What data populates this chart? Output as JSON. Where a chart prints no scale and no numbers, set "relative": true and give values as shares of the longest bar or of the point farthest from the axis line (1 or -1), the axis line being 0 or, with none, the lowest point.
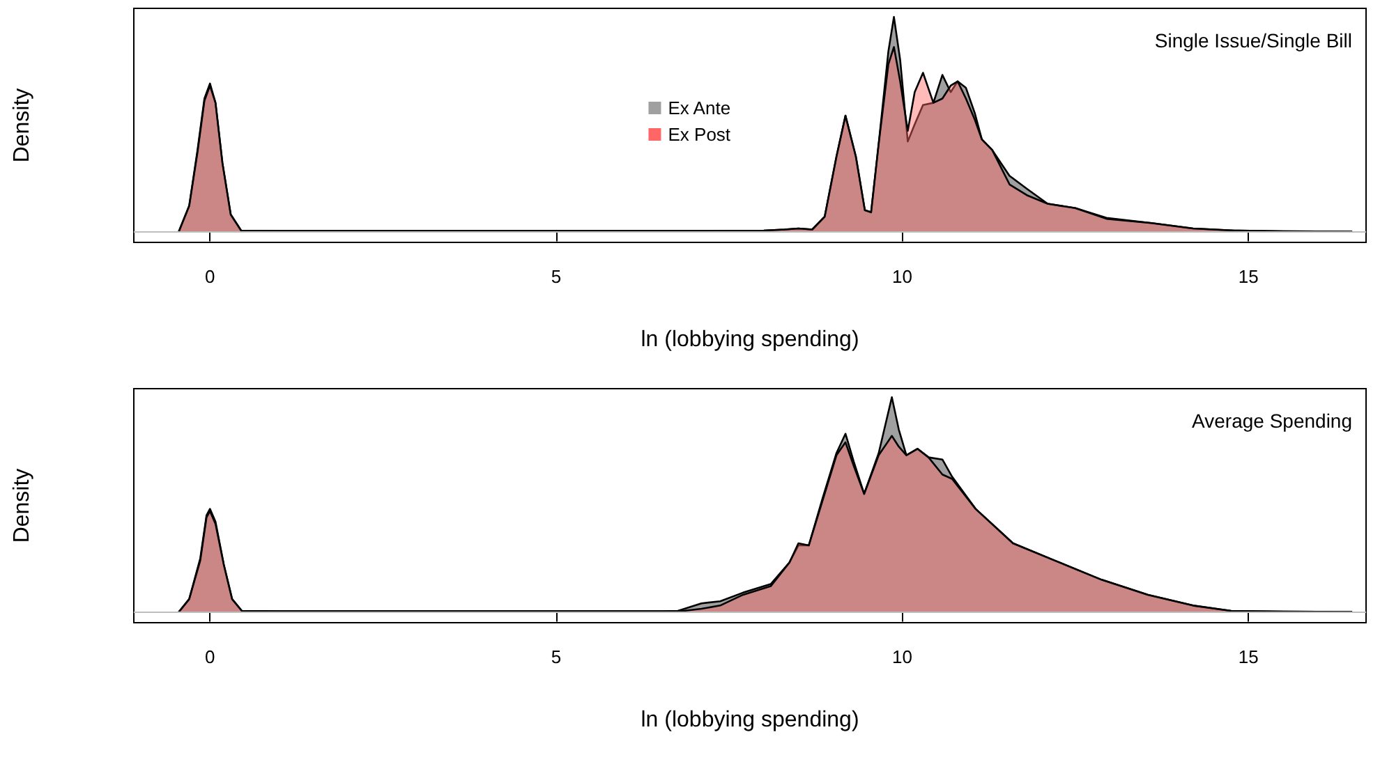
{
  "chart_data": [
    {
      "type": "area",
      "relative": true,
      "xlabel": "ln (lobbying spending)",
      "ylabel": "Density",
      "annotations": [
        "Single Issue/Single Bill"
      ],
      "legend": "top",
      "xlim": [
        -1.1,
        16.7
      ],
      "xticks": [
        0,
        5,
        10,
        15
      ],
      "grid": false,
      "ref_lines": [
        {
          "axis": "y",
          "value": 0,
          "color": "#bebebe"
        }
      ],
      "x": [
        -0.45,
        -0.3,
        -0.18,
        -0.08,
        0,
        0.08,
        0.18,
        0.3,
        0.45,
        1,
        3,
        5,
        7,
        8,
        8.3,
        8.5,
        8.7,
        8.88,
        9.05,
        9.18,
        9.33,
        9.46,
        9.55,
        9.66,
        9.8,
        9.88,
        9.97,
        10.08,
        10.18,
        10.3,
        10.45,
        10.58,
        10.7,
        10.8,
        10.92,
        11.05,
        11.15,
        11.3,
        11.55,
        11.8,
        12.1,
        12.5,
        12.95,
        13.6,
        14.2,
        14.8,
        15.5,
        16.5
      ],
      "series": [
        {
          "name": "Ex Ante",
          "color": "#a0a0a0",
          "values": [
            0,
            0.12,
            0.38,
            0.62,
            0.69,
            0.6,
            0.32,
            0.08,
            0.005,
            0.003,
            0.003,
            0.003,
            0.003,
            0.005,
            0.01,
            0.015,
            0.01,
            0.07,
            0.35,
            0.54,
            0.35,
            0.1,
            0.09,
            0.41,
            0.84,
            1.0,
            0.8,
            0.42,
            0.5,
            0.59,
            0.6,
            0.73,
            0.65,
            0.7,
            0.67,
            0.55,
            0.43,
            0.38,
            0.26,
            0.2,
            0.13,
            0.11,
            0.064,
            0.04,
            0.015,
            0.005,
            0.002,
            0
          ]
        },
        {
          "name": "Ex Post",
          "color": "#ff6666",
          "values": [
            0,
            0.12,
            0.37,
            0.61,
            0.68,
            0.6,
            0.32,
            0.08,
            0.005,
            0.003,
            0.003,
            0.003,
            0.003,
            0.005,
            0.01,
            0.015,
            0.01,
            0.07,
            0.35,
            0.54,
            0.35,
            0.1,
            0.09,
            0.41,
            0.78,
            0.86,
            0.7,
            0.47,
            0.65,
            0.74,
            0.6,
            0.62,
            0.68,
            0.7,
            0.62,
            0.52,
            0.43,
            0.38,
            0.22,
            0.17,
            0.13,
            0.11,
            0.06,
            0.04,
            0.015,
            0.005,
            0.002,
            0
          ]
        }
      ]
    },
    {
      "type": "area",
      "relative": true,
      "xlabel": "ln (lobbying spending)",
      "ylabel": "Density",
      "annotations": [
        "Average Spending"
      ],
      "xlim": [
        -1.1,
        16.7
      ],
      "xticks": [
        0,
        5,
        10,
        15
      ],
      "grid": false,
      "ref_lines": [
        {
          "axis": "y",
          "value": 0,
          "color": "#bebebe"
        }
      ],
      "x": [
        -0.45,
        -0.3,
        -0.14,
        -0.05,
        0,
        0.08,
        0.2,
        0.32,
        0.46,
        1,
        3,
        5,
        6.5,
        6.76,
        7.1,
        7.37,
        7.7,
        8.1,
        8.37,
        8.5,
        8.65,
        8.85,
        9.05,
        9.18,
        9.3,
        9.45,
        9.66,
        9.85,
        9.95,
        10.06,
        10.22,
        10.38,
        10.58,
        10.72,
        11.06,
        11.6,
        12.2,
        12.88,
        13.55,
        14.2,
        14.75,
        15.5,
        16.5
      ],
      "series": [
        {
          "color": "#a0a0a0",
          "values": [
            0,
            0.06,
            0.25,
            0.45,
            0.48,
            0.42,
            0.22,
            0.06,
            0.005,
            0.003,
            0.003,
            0.003,
            0.003,
            0.005,
            0.04,
            0.05,
            0.09,
            0.13,
            0.23,
            0.31,
            0.31,
            0.53,
            0.74,
            0.83,
            0.7,
            0.55,
            0.74,
            1.0,
            0.85,
            0.73,
            0.76,
            0.72,
            0.71,
            0.63,
            0.48,
            0.32,
            0.24,
            0.15,
            0.08,
            0.03,
            0.005,
            0.002,
            0
          ]
        },
        {
          "color": "#ff6666",
          "values": [
            0,
            0.06,
            0.24,
            0.44,
            0.47,
            0.41,
            0.22,
            0.06,
            0.005,
            0.003,
            0.003,
            0.003,
            0.003,
            0.002,
            0.015,
            0.03,
            0.08,
            0.12,
            0.23,
            0.32,
            0.31,
            0.52,
            0.73,
            0.79,
            0.68,
            0.55,
            0.73,
            0.82,
            0.77,
            0.73,
            0.76,
            0.72,
            0.64,
            0.62,
            0.48,
            0.32,
            0.24,
            0.15,
            0.08,
            0.03,
            0.005,
            0.002,
            0
          ]
        }
      ]
    }
  ]
}
